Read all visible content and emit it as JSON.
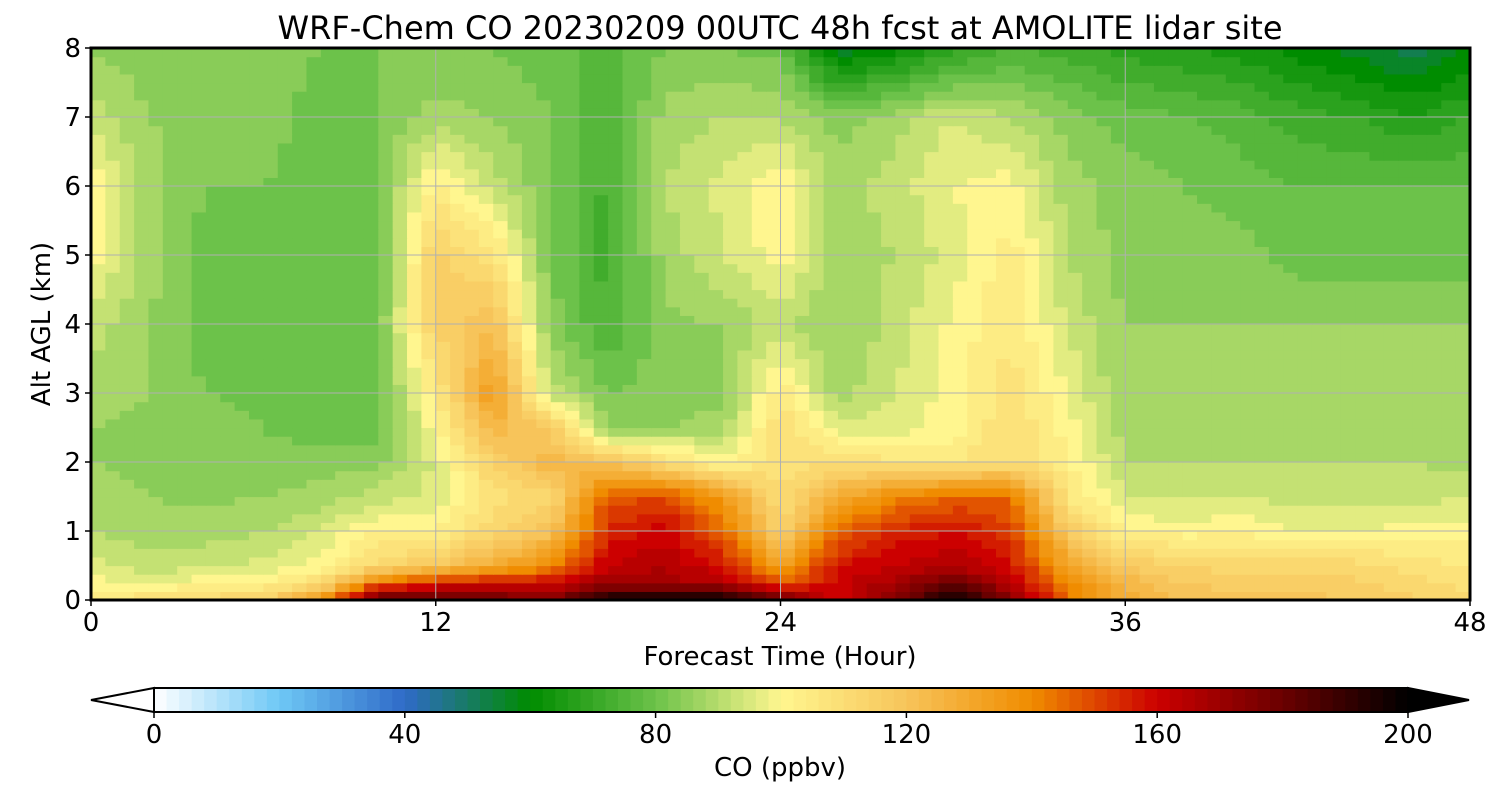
{
  "chart_data": {
    "type": "heatmap",
    "title": "WRF-Chem CO  20230209 00UTC 48h fcst at AMOLITE lidar site",
    "xlabel": "Forecast Time (Hour)",
    "ylabel": "Alt AGL (km)",
    "xlim": [
      0,
      48
    ],
    "ylim": [
      0,
      8
    ],
    "x_ticks": [
      "0",
      "12",
      "24",
      "36",
      "48"
    ],
    "y_ticks": [
      "0",
      "1",
      "2",
      "3",
      "4",
      "5",
      "6",
      "7",
      "8"
    ],
    "grid": true,
    "colorbar": {
      "label": "CO  (ppbv)",
      "range": [
        0,
        200
      ],
      "ticks": [
        "0",
        "40",
        "80",
        "120",
        "160",
        "200"
      ],
      "extend": "both",
      "colors": [
        "#ffffff",
        "#6ec8f5",
        "#2f6ac8",
        "#008c00",
        "#6cc24a",
        "#fff68f",
        "#f7c45a",
        "#f08c00",
        "#cc0000",
        "#6a0000",
        "#000000"
      ]
    },
    "x": [
      0,
      2,
      4,
      6,
      8,
      10,
      12,
      14,
      16,
      18,
      20,
      22,
      24,
      26,
      28,
      30,
      32,
      34,
      36,
      38,
      40,
      42,
      44,
      46,
      48
    ],
    "y": [
      0,
      0.25,
      0.5,
      1,
      1.5,
      2,
      2.5,
      3,
      4,
      5,
      6,
      7,
      8
    ],
    "z": [
      [
        105,
        110,
        112,
        115,
        135,
        185,
        185,
        180,
        175,
        200,
        200,
        200,
        180,
        160,
        175,
        200,
        175,
        145,
        128,
        122,
        120,
        120,
        118,
        115,
        110
      ],
      [
        100,
        98,
        100,
        102,
        110,
        145,
        155,
        160,
        160,
        170,
        168,
        165,
        148,
        160,
        168,
        180,
        165,
        140,
        125,
        118,
        116,
        116,
        115,
        112,
        108
      ],
      [
        95,
        92,
        93,
        95,
        100,
        112,
        118,
        128,
        140,
        162,
        166,
        158,
        132,
        158,
        162,
        166,
        158,
        132,
        118,
        114,
        112,
        112,
        112,
        108,
        105
      ],
      [
        90,
        88,
        88,
        90,
        94,
        103,
        102,
        112,
        120,
        155,
        160,
        145,
        112,
        145,
        155,
        158,
        152,
        118,
        102,
        100,
        102,
        98,
        98,
        100,
        100
      ],
      [
        88,
        86,
        85,
        86,
        88,
        92,
        95,
        108,
        112,
        148,
        150,
        135,
        110,
        128,
        140,
        146,
        145,
        106,
        94,
        93,
        94,
        92,
        92,
        92,
        94
      ],
      [
        86,
        85,
        84,
        83,
        84,
        85,
        95,
        115,
        125,
        120,
        110,
        100,
        108,
        110,
        106,
        106,
        110,
        103,
        90,
        90,
        90,
        90,
        90,
        90,
        88
      ],
      [
        86,
        85,
        84,
        82,
        80,
        80,
        100,
        125,
        118,
        85,
        86,
        88,
        110,
        96,
        96,
        100,
        110,
        100,
        88,
        88,
        88,
        86,
        86,
        86,
        86
      ],
      [
        88,
        86,
        82,
        80,
        80,
        80,
        105,
        135,
        92,
        82,
        84,
        85,
        105,
        88,
        94,
        100,
        108,
        98,
        86,
        86,
        86,
        86,
        86,
        86,
        86
      ],
      [
        92,
        86,
        80,
        80,
        80,
        82,
        115,
        122,
        84,
        74,
        85,
        86,
        92,
        85,
        92,
        99,
        106,
        93,
        86,
        86,
        86,
        86,
        86,
        86,
        86
      ],
      [
        100,
        88,
        80,
        80,
        80,
        80,
        115,
        108,
        82,
        72,
        88,
        94,
        100,
        88,
        90,
        96,
        104,
        90,
        84,
        84,
        84,
        80,
        80,
        80,
        80
      ],
      [
        102,
        88,
        82,
        82,
        80,
        82,
        104,
        92,
        82,
        73,
        90,
        95,
        102,
        88,
        92,
        98,
        100,
        88,
        84,
        82,
        80,
        78,
        78,
        78,
        78
      ],
      [
        92,
        86,
        84,
        84,
        80,
        82,
        88,
        86,
        82,
        74,
        88,
        90,
        90,
        84,
        88,
        94,
        90,
        84,
        80,
        78,
        76,
        72,
        70,
        66,
        70
      ],
      [
        85,
        84,
        84,
        84,
        82,
        82,
        82,
        82,
        80,
        76,
        82,
        82,
        80,
        55,
        60,
        68,
        74,
        72,
        68,
        66,
        64,
        60,
        56,
        52,
        58
      ]
    ]
  }
}
